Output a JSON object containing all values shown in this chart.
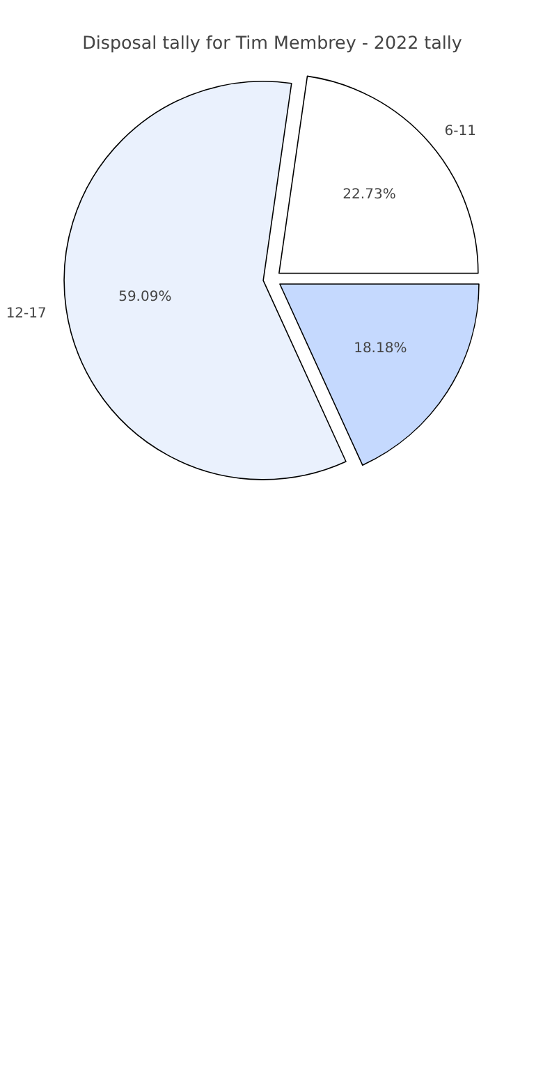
{
  "chart_data": {
    "type": "pie",
    "title": "Disposal tally for Tim Membrey - 2022 tally",
    "categories": [
      "6-11",
      "12-17",
      null
    ],
    "values": [
      22.73,
      59.09,
      18.18
    ],
    "colors": [
      "#ffffff",
      "#eaf1fd",
      "#c5d9fe"
    ],
    "value_labels": [
      "22.73%",
      "59.09%",
      "18.18%"
    ]
  }
}
